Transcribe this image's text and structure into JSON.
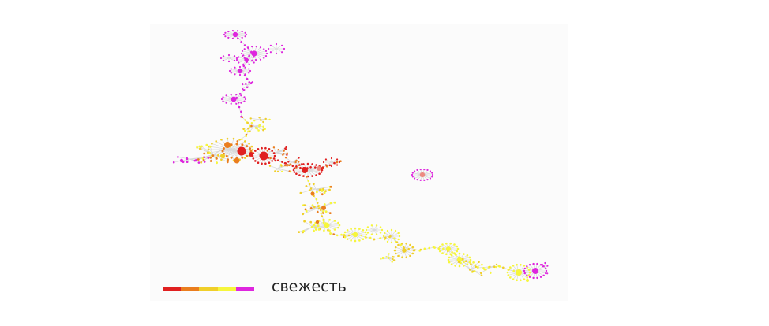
{
  "legend": {
    "label": "свежесть",
    "colors": [
      "#e02020",
      "#ea7d1e",
      "#f0cf2a",
      "#f6f63c",
      "#de26de"
    ]
  },
  "palette": {
    "red": "#e02020",
    "orange": "#ea7d1e",
    "gold": "#f0cf2a",
    "yellow": "#f6f63c",
    "magenta": "#de26de",
    "salmon": "#ec8c82",
    "edge": "#d8d8d8"
  }
}
